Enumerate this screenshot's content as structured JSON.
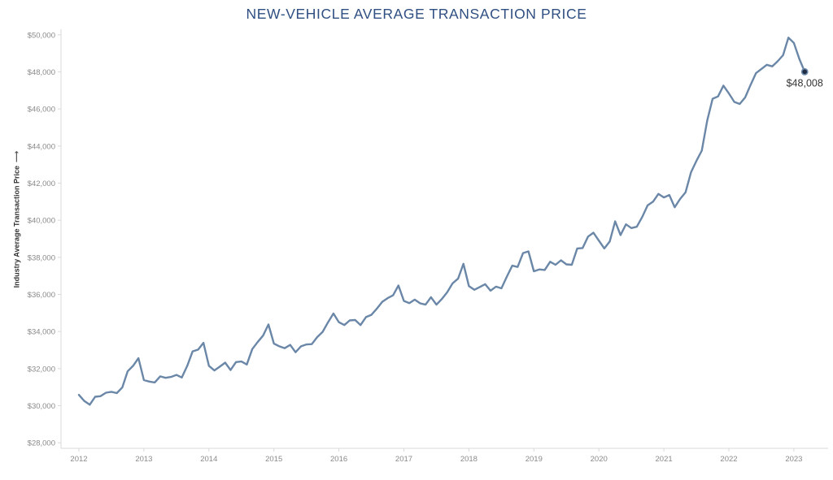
{
  "chart_data": {
    "type": "line",
    "title": "NEW-VEHICLE AVERAGE TRANSACTION PRICE",
    "xlabel": "",
    "ylabel": "Industry Average Transaction Price",
    "y_ticks": [
      28000,
      30000,
      32000,
      34000,
      36000,
      38000,
      40000,
      42000,
      44000,
      46000,
      48000,
      50000
    ],
    "y_tick_labels": [
      "$28,000",
      "$30,000",
      "$32,000",
      "$34,000",
      "$36,000",
      "$38,000",
      "$40,000",
      "$42,000",
      "$44,000",
      "$46,000",
      "$48,000",
      "$50,000"
    ],
    "x_tick_labels": [
      "2012",
      "2013",
      "2014",
      "2015",
      "2016",
      "2017",
      "2018",
      "2019",
      "2020",
      "2021",
      "2022",
      "2023"
    ],
    "ylim": [
      27700,
      50300
    ],
    "grid": false,
    "line_color": "#6b87a8",
    "end_point_label": "$48,008",
    "series": [
      {
        "x_start": "2012-01",
        "frequency": "monthly",
        "values": [
          30580,
          30250,
          30050,
          30480,
          30510,
          30700,
          30750,
          30680,
          30980,
          31850,
          32150,
          32560,
          31380,
          31300,
          31250,
          31580,
          31500,
          31550,
          31660,
          31520,
          32150,
          32930,
          33020,
          33390,
          32150,
          31900,
          32100,
          32320,
          31920,
          32350,
          32380,
          32220,
          33050,
          33430,
          33780,
          34380,
          33350,
          33200,
          33100,
          33280,
          32880,
          33200,
          33300,
          33320,
          33700,
          33980,
          34500,
          34970,
          34500,
          34350,
          34600,
          34620,
          34350,
          34780,
          34900,
          35230,
          35600,
          35800,
          35950,
          36480,
          35650,
          35530,
          35720,
          35520,
          35450,
          35850,
          35450,
          35750,
          36120,
          36600,
          36850,
          37650,
          36450,
          36250,
          36400,
          36550,
          36200,
          36420,
          36330,
          36950,
          37550,
          37480,
          38230,
          38320,
          37250,
          37350,
          37320,
          37760,
          37600,
          37840,
          37620,
          37600,
          38480,
          38500,
          39120,
          39330,
          38900,
          38480,
          38850,
          39940,
          39200,
          39780,
          39580,
          39650,
          40180,
          40800,
          41000,
          41420,
          41230,
          41360,
          40700,
          41150,
          41500,
          42580,
          43200,
          43750,
          45380,
          46550,
          46680,
          47260,
          46840,
          46380,
          46270,
          46620,
          47290,
          47930,
          48160,
          48380,
          48300,
          48570,
          48900,
          49850,
          49560,
          48700,
          48008
        ]
      }
    ]
  }
}
